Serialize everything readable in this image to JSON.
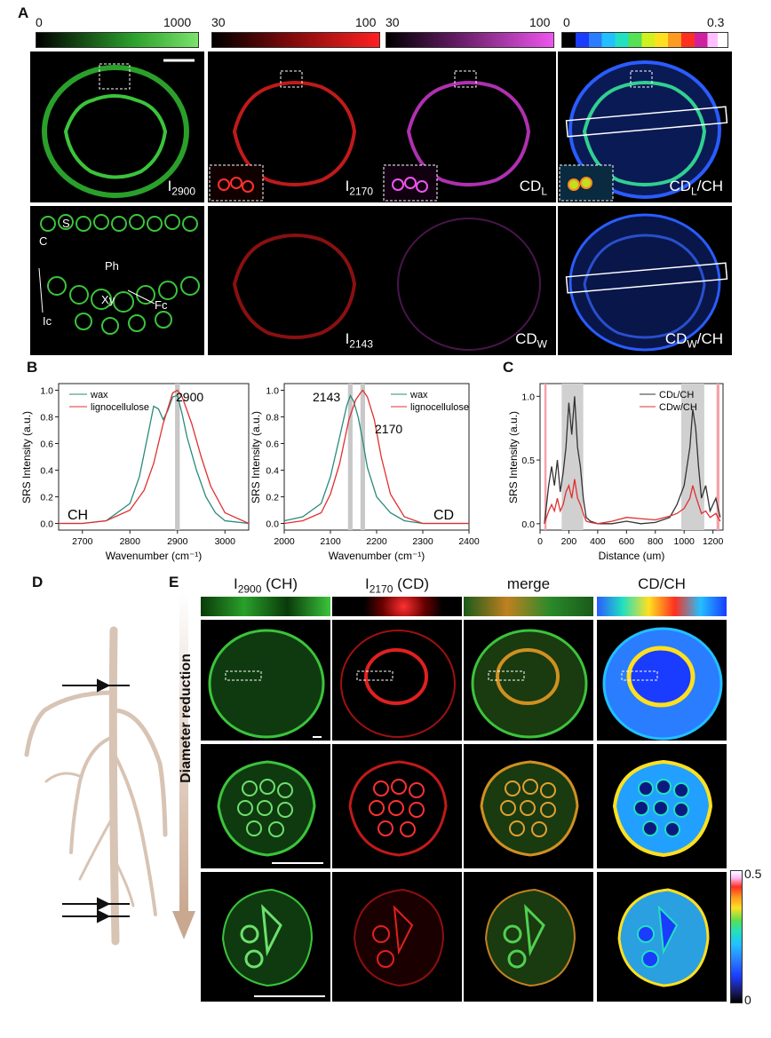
{
  "panelA": {
    "letter": "A",
    "colorbars": [
      {
        "min": "0",
        "max": "1000"
      },
      {
        "min": "30",
        "max": "100"
      },
      {
        "min": "30",
        "max": "100"
      },
      {
        "min": "0",
        "max": "0.3"
      }
    ],
    "top_labels": {
      "i2900": "I",
      "i2900_sub": "2900",
      "i2170": "I",
      "i2170_sub": "2170",
      "cdl": "CD",
      "cdl_sub": "L",
      "cdlch": "CD",
      "cdlch_sub": "L",
      "cdlch_rest": "/CH"
    },
    "bottom_labels": {
      "i2143": "I",
      "i2143_sub": "2143",
      "cdw": "CD",
      "cdw_sub": "W",
      "cdwch": "CD",
      "cdwch_sub": "W",
      "cdwch_rest": "/CH"
    },
    "tissue_labels": [
      "S",
      "C",
      "Ph",
      "Xy",
      "Fc",
      "Ic"
    ]
  },
  "panelB": {
    "letter": "B",
    "left": {
      "legend": [
        "wax",
        "lignocellulose"
      ],
      "peak": "2900",
      "region": "CH",
      "xlabel": "Wavenumber (cm⁻¹)",
      "ylabel": "SRS Intensity (a.u.)",
      "xticks": [
        "2700",
        "2800",
        "2900",
        "3000"
      ],
      "yticks": [
        "0.0",
        "0.2",
        "0.4",
        "0.6",
        "0.8",
        "1.0"
      ]
    },
    "right": {
      "legend": [
        "wax",
        "lignocellulose"
      ],
      "peak1": "2143",
      "peak2": "2170",
      "region": "CD",
      "xlabel": "Wavenumber (cm⁻¹)",
      "ylabel": "SRS Intensity (a.u.)",
      "xticks": [
        "2000",
        "2100",
        "2200",
        "2300",
        "2400"
      ],
      "yticks": [
        "0.0",
        "0.2",
        "0.4",
        "0.6",
        "0.8",
        "1.0"
      ]
    }
  },
  "panelC": {
    "letter": "C",
    "legend": [
      "CDʟ/CH",
      "CDw/CH"
    ],
    "xlabel": "Distance (um)",
    "ylabel": "SRS Intensity (a.u.)",
    "xticks": [
      "0",
      "200",
      "400",
      "600",
      "800",
      "1000",
      "1200"
    ],
    "yticks": [
      "0.0",
      "0.5",
      "1.0"
    ]
  },
  "panelD": {
    "letter": "D"
  },
  "panelE": {
    "letter": "E",
    "col_heads": {
      "c1": "I",
      "c1_sub": "2900",
      "c1_rest": " (CH)",
      "c2": "I",
      "c2_sub": "2170",
      "c2_rest": " (CD)",
      "c3": "merge",
      "c4": "CD/CH"
    },
    "arrow_label": "Diameter reduction",
    "cbar": {
      "max": "0.5",
      "min": "0"
    }
  },
  "chart_data": [
    {
      "type": "line",
      "xlabel": "Wavenumber (cm⁻¹)",
      "ylabel": "SRS Intensity (a.u.)",
      "xlim": [
        2650,
        3050
      ],
      "ylim": [
        -0.05,
        1.05
      ],
      "series": [
        {
          "name": "wax",
          "color": "#2a8a7a",
          "x": [
            2650,
            2700,
            2750,
            2800,
            2820,
            2840,
            2850,
            2860,
            2870,
            2880,
            2890,
            2900,
            2910,
            2920,
            2940,
            2960,
            2980,
            3000,
            3050
          ],
          "y": [
            0.0,
            0.0,
            0.02,
            0.15,
            0.35,
            0.7,
            0.88,
            0.86,
            0.78,
            0.85,
            0.95,
            0.96,
            0.82,
            0.65,
            0.4,
            0.2,
            0.08,
            0.02,
            0.0
          ]
        },
        {
          "name": "lignocellulose",
          "color": "#e03030",
          "x": [
            2650,
            2700,
            2750,
            2800,
            2830,
            2850,
            2870,
            2890,
            2900,
            2910,
            2930,
            2950,
            2970,
            3000,
            3050
          ],
          "y": [
            0.0,
            0.0,
            0.02,
            0.1,
            0.25,
            0.45,
            0.75,
            0.98,
            1.0,
            0.95,
            0.75,
            0.5,
            0.28,
            0.08,
            0.0
          ]
        }
      ],
      "annotations": [
        "2900",
        "CH"
      ]
    },
    {
      "type": "line",
      "xlabel": "Wavenumber (cm⁻¹)",
      "ylabel": "SRS Intensity (a.u.)",
      "xlim": [
        2000,
        2400
      ],
      "ylim": [
        -0.05,
        1.05
      ],
      "series": [
        {
          "name": "wax",
          "color": "#2a8a7a",
          "x": [
            2000,
            2040,
            2080,
            2100,
            2120,
            2135,
            2143,
            2150,
            2160,
            2170,
            2180,
            2200,
            2230,
            2260,
            2300,
            2400
          ],
          "y": [
            0.02,
            0.05,
            0.15,
            0.35,
            0.65,
            0.88,
            0.96,
            0.92,
            0.8,
            0.62,
            0.42,
            0.2,
            0.08,
            0.02,
            0.0,
            0.0
          ]
        },
        {
          "name": "lignocellulose",
          "color": "#e03030",
          "x": [
            2000,
            2040,
            2080,
            2100,
            2120,
            2140,
            2155,
            2165,
            2170,
            2180,
            2195,
            2210,
            2230,
            2260,
            2300,
            2400
          ],
          "y": [
            0.0,
            0.02,
            0.08,
            0.22,
            0.45,
            0.78,
            0.93,
            0.98,
            1.0,
            0.95,
            0.78,
            0.5,
            0.22,
            0.05,
            0.0,
            0.0
          ]
        }
      ],
      "annotations": [
        "2143",
        "2170",
        "CD"
      ]
    },
    {
      "type": "line",
      "xlabel": "Distance (um)",
      "ylabel": "SRS Intensity (a.u.)",
      "xlim": [
        0,
        1270
      ],
      "ylim": [
        -0.05,
        1.1
      ],
      "series": [
        {
          "name": "CDʟ/CH",
          "color": "#333333",
          "x": [
            30,
            60,
            80,
            100,
            120,
            140,
            160,
            180,
            200,
            220,
            240,
            260,
            280,
            300,
            320,
            350,
            400,
            500,
            600,
            700,
            800,
            900,
            950,
            1000,
            1040,
            1060,
            1080,
            1100,
            1120,
            1150,
            1180,
            1220,
            1250
          ],
          "y": [
            0.0,
            0.3,
            0.45,
            0.3,
            0.5,
            0.25,
            0.4,
            0.6,
            0.95,
            0.7,
            1.0,
            0.6,
            0.45,
            0.2,
            0.05,
            0.02,
            0.0,
            0.0,
            0.02,
            0.0,
            0.01,
            0.05,
            0.15,
            0.3,
            0.6,
            0.9,
            0.75,
            0.45,
            0.2,
            0.3,
            0.1,
            0.2,
            0.05
          ]
        },
        {
          "name": "CDw/CH",
          "color": "#e03030",
          "x": [
            30,
            60,
            80,
            100,
            120,
            140,
            160,
            180,
            200,
            220,
            240,
            260,
            280,
            300,
            320,
            350,
            400,
            500,
            600,
            700,
            800,
            900,
            950,
            1000,
            1040,
            1060,
            1080,
            1100,
            1120,
            1150,
            1180,
            1220,
            1250
          ],
          "y": [
            0.0,
            0.1,
            0.15,
            0.1,
            0.2,
            0.1,
            0.15,
            0.25,
            0.3,
            0.2,
            0.35,
            0.2,
            0.15,
            0.08,
            0.02,
            0.01,
            0.0,
            0.02,
            0.05,
            0.04,
            0.03,
            0.06,
            0.08,
            0.12,
            0.2,
            0.3,
            0.22,
            0.15,
            0.08,
            0.1,
            0.05,
            0.08,
            0.02
          ]
        }
      ]
    }
  ]
}
